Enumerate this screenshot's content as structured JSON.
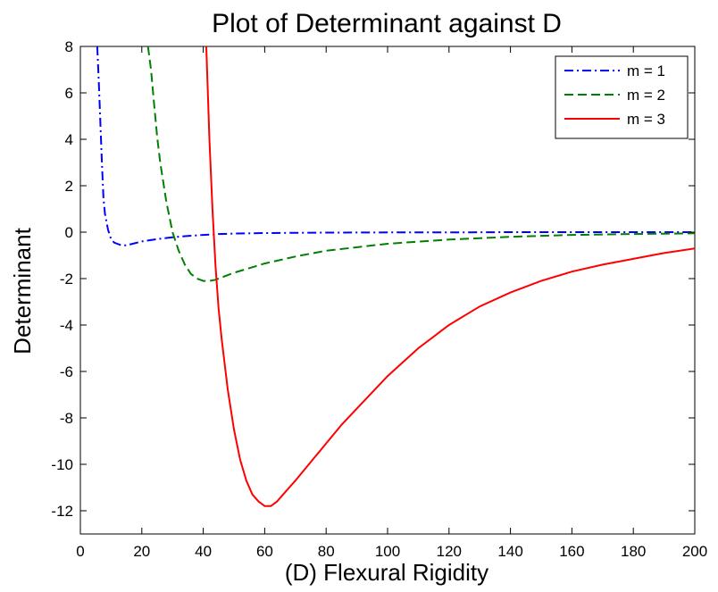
{
  "chart_data": {
    "type": "line",
    "title": "Plot of Determinant against D",
    "xlabel": "(D) Flexural Rigidity",
    "ylabel": "Determinant",
    "xlim": [
      0,
      200
    ],
    "ylim": [
      -13,
      8
    ],
    "xticks": [
      "0",
      "20",
      "40",
      "60",
      "80",
      "100",
      "120",
      "140",
      "160",
      "180",
      "200"
    ],
    "yticks": [
      "8",
      "6",
      "4",
      "2",
      "0",
      "-2",
      "-4",
      "-6",
      "-8",
      "-10",
      "-12"
    ],
    "grid": false,
    "legend_position": "top-right",
    "series": [
      {
        "name": "m = 1",
        "color": "#0000ff",
        "dash": "dash-dot",
        "x": [
          5.5,
          6,
          7,
          7.5,
          8,
          9,
          10,
          11,
          12,
          13,
          14,
          15,
          17,
          20,
          25,
          30,
          35,
          40,
          45,
          50,
          60,
          80,
          100,
          120,
          140,
          160,
          180,
          200
        ],
        "y": [
          8,
          6.5,
          3,
          1.5,
          0.8,
          0.1,
          -0.3,
          -0.45,
          -0.5,
          -0.55,
          -0.57,
          -0.57,
          -0.5,
          -0.4,
          -0.3,
          -0.22,
          -0.16,
          -0.12,
          -0.08,
          -0.06,
          -0.04,
          -0.02,
          -0.01,
          -0.01,
          0,
          0,
          0,
          0
        ]
      },
      {
        "name": "m = 2",
        "color": "#008000",
        "dash": "dashed",
        "x": [
          22,
          23,
          24,
          25,
          26,
          28,
          30,
          32,
          34,
          36,
          38,
          40,
          42,
          44,
          46,
          48,
          50,
          55,
          60,
          70,
          80,
          100,
          120,
          140,
          160,
          180,
          200
        ],
        "y": [
          8,
          7,
          5.5,
          4.1,
          3,
          1.3,
          0.0,
          -0.8,
          -1.4,
          -1.8,
          -2.0,
          -2.1,
          -2.1,
          -2.05,
          -1.95,
          -1.85,
          -1.75,
          -1.55,
          -1.35,
          -1.05,
          -0.8,
          -0.5,
          -0.32,
          -0.2,
          -0.12,
          -0.08,
          -0.05
        ]
      },
      {
        "name": "m = 3",
        "color": "#ff0000",
        "dash": "solid",
        "x": [
          41,
          42,
          43,
          44,
          45,
          46,
          48,
          50,
          52,
          54,
          56,
          58,
          60,
          62,
          64,
          66,
          68,
          70,
          75,
          80,
          85,
          90,
          100,
          110,
          120,
          130,
          140,
          150,
          160,
          170,
          180,
          190,
          200
        ],
        "y": [
          8,
          4,
          1,
          -1.5,
          -3.3,
          -4.6,
          -6.8,
          -8.5,
          -9.8,
          -10.7,
          -11.3,
          -11.6,
          -11.8,
          -11.8,
          -11.6,
          -11.3,
          -11.0,
          -10.7,
          -9.9,
          -9.1,
          -8.3,
          -7.6,
          -6.2,
          -5.0,
          -4.0,
          -3.2,
          -2.6,
          -2.1,
          -1.7,
          -1.4,
          -1.15,
          -0.9,
          -0.7
        ]
      }
    ]
  }
}
